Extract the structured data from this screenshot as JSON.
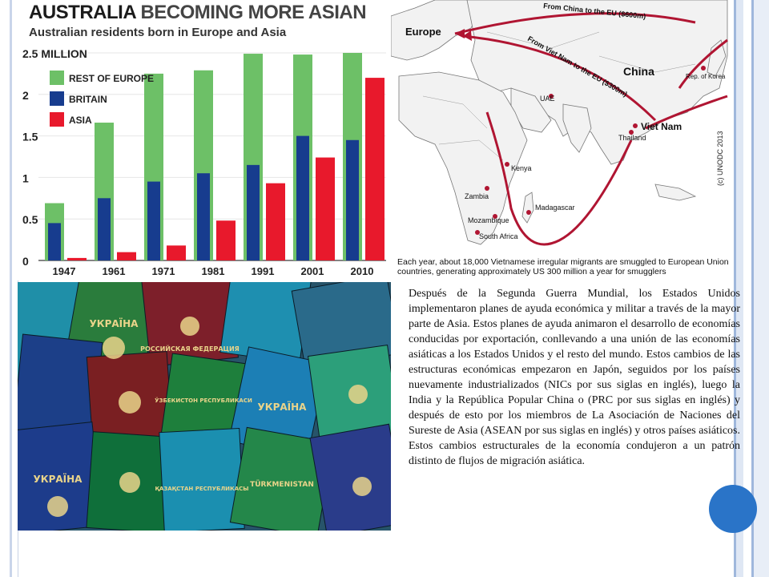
{
  "chart_data": {
    "type": "bar",
    "title": "AUSTRALIA BECOMING MORE ASIAN",
    "title_parts": [
      "AUSTRALIA",
      "BECOMING MORE ASIAN"
    ],
    "subtitle": "Australian residents born in Europe and Asia",
    "categories": [
      "1947",
      "1961",
      "1971",
      "1981",
      "1991",
      "2001",
      "2010"
    ],
    "series": [
      {
        "name": "REST OF EUROPE",
        "color": "#6dc067",
        "values": [
          0.69,
          1.66,
          2.25,
          2.29,
          2.49,
          2.48,
          2.5
        ]
      },
      {
        "name": "BRITAIN",
        "color": "#173c8e",
        "values": [
          0.45,
          0.75,
          0.95,
          1.05,
          1.15,
          1.5,
          1.45
        ]
      },
      {
        "name": "ASIA",
        "color": "#e8192c",
        "values": [
          0.03,
          0.1,
          0.18,
          0.48,
          0.93,
          1.24,
          2.2
        ]
      }
    ],
    "ylim": [
      0,
      2.5
    ],
    "yticks": [
      "0",
      "0.5",
      "1",
      "1.5",
      "2",
      "2.5 MILLION"
    ],
    "xlabel": "",
    "ylabel": "",
    "legend_placement": "top-left"
  },
  "map": {
    "route_labels": [
      "From China to the EU ($600m)",
      "From Viet Nam to the EU ($300m)"
    ],
    "places": [
      "Europe",
      "China",
      "Viet Nam",
      "Rep. of Korea",
      "UAE",
      "Thailand",
      "Kenya",
      "Zambia",
      "Madagascar",
      "Mozambique",
      "South Africa"
    ],
    "copyright": "(c) UNODC 2013",
    "caption": "Each year, about 18,000 Vietnamese irregular migrants are smuggled to European Union countries, generating approximately US 300 million a year for smugglers",
    "accent_color": "#b01532"
  },
  "photo": {
    "covers": [
      "ЎЗБЕКИСТОН РЕСПУБЛИКАСИ",
      "УКРАЇНА",
      "РОССИЙСКАЯ ФЕДЕРАЦИЯ",
      "ҚАЗАҚСТАН РЕСПУБЛИКАСЫ",
      "TÜRKMENISTAN"
    ]
  },
  "text": {
    "paragraph": "Después de la Segunda Guerra Mundial, los Estados Unidos implementaron planes de ayuda económica y militar a través de la mayor parte de Asia. Estos planes de ayuda animaron el desarrollo de economías conducidas por exportación, conllevando a una unión de las economías asiáticas a los Estados Unidos y el resto del mundo. Estos cambios de las estructuras económicas empezaron en Japón, seguidos por los países nuevamente industrializados (NICs por sus siglas en inglés), luego la India y la República Popular China o (PRC por sus siglas en inglés) y después de esto por los miembros de La Asociación de Naciones del Sureste de Asia (ASEAN por sus siglas en inglés) y otros países asiáticos. Estos cambios estructurales de la economía condujeron a un patrón distinto de flujos de migración asiática."
  },
  "colors": {
    "frame_blue": "#9fb7dc",
    "circle_button": "#2a74c8"
  }
}
